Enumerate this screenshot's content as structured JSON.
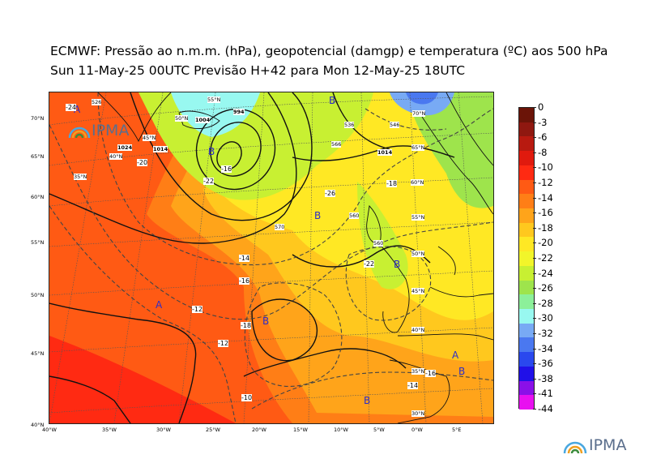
{
  "header": {
    "title_line1": "ECMWF:  Pressão ao n.m.m. (hPa), geopotencial (damgp) e temperatura (ºC) aos 500 hPa",
    "title_line2": "Sun 11-May-25 00UTC Previsão H+42 para Mon 12-May-25 18UTC"
  },
  "map": {
    "lat_labels": [
      "70°N",
      "65°N",
      "60°N",
      "55°N",
      "50°N",
      "45°N",
      "40°N"
    ],
    "lon_labels": [
      "40°W",
      "35°W",
      "30°W",
      "25°W",
      "20°W",
      "15°W",
      "10°W",
      "5°W",
      "0°W",
      "5°E"
    ],
    "grid_labels": [
      "55°N",
      "50°N",
      "45°N",
      "40°N",
      "35°N",
      "70°N",
      "65°N",
      "60°N",
      "55°N",
      "50°N",
      "45°N",
      "40°N",
      "35°N",
      "30°N"
    ],
    "pressure_centers": [
      "A",
      "B",
      "B",
      "A",
      "B",
      "B",
      "A",
      "B",
      "B",
      "B"
    ],
    "isobar_labels": [
      "1004",
      "994",
      "1014",
      "1014",
      "1024"
    ],
    "temperature_labels": [
      "-16",
      "-18",
      "-20",
      "-22",
      "-22",
      "-24",
      "-26",
      "-14",
      "-16",
      "-18",
      "-12",
      "-14",
      "-10",
      "-12",
      "-16"
    ],
    "geopotential_labels": [
      "526",
      "536",
      "546",
      "566",
      "560",
      "570",
      "560"
    ]
  },
  "colorbar": {
    "labels": [
      "0",
      "-3",
      "-6",
      "-8",
      "-10",
      "-12",
      "-14",
      "-16",
      "-18",
      "-20",
      "-22",
      "-24",
      "-26",
      "-28",
      "-30",
      "-32",
      "-34",
      "-36",
      "-38",
      "-41",
      "-44"
    ],
    "colors": [
      "#6b1408",
      "#8f1810",
      "#b81a10",
      "#e01a0e",
      "#ff2a12",
      "#ff5a14",
      "#ff7e16",
      "#ffa41a",
      "#ffc81e",
      "#ffe824",
      "#f2f52a",
      "#c8f032",
      "#9ee44c",
      "#8cf09a",
      "#98f8f0",
      "#78aaf4",
      "#4a78f0",
      "#2a48ee",
      "#2010e8",
      "#8a10e8",
      "#e810f0"
    ]
  },
  "logos": {
    "map_logo": "IPMA",
    "footer_logo": "IPMA"
  }
}
